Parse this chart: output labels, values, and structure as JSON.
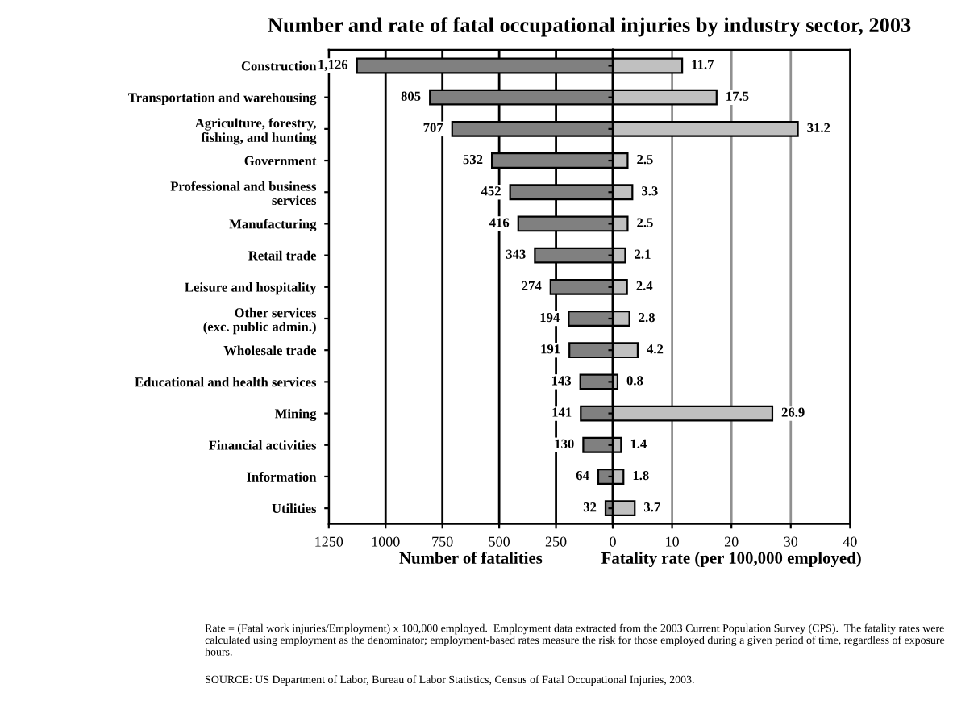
{
  "chart_data": [
    {
      "type": "bar",
      "orientation": "horizontal",
      "title": "Number and rate of fatal occupational injuries by industry sector, 2003",
      "xlabel": "Number of fatalities",
      "categories": [
        "Construction",
        "Transportation and warehousing",
        "Agriculture, forestry,\nfishing, and hunting",
        "Government",
        "Professional and business\nservices",
        "Manufacturing",
        "Retail trade",
        "Leisure and hospitality",
        "Other services\n(exc. public admin.)",
        "Wholesale trade",
        "Educational and health services",
        "Mining",
        "Financial activities",
        "Information",
        "Utilities"
      ],
      "series": [
        {
          "color": "#808080",
          "values": [
            1126,
            805,
            707,
            532,
            452,
            416,
            343,
            274,
            194,
            191,
            143,
            141,
            130,
            64,
            32
          ],
          "value_labels": [
            "1,126",
            "805",
            "707",
            "532",
            "452",
            "416",
            "343",
            "274",
            "194",
            "191",
            "143",
            "141",
            "130",
            "64",
            "32"
          ]
        }
      ],
      "xlim": [
        1250,
        0
      ],
      "xticks": [
        1250,
        1000,
        750,
        500,
        250,
        {
          "value": 0,
          "label": null
        }
      ],
      "grid": "x",
      "annotations": [
        "Rate = (Fatal work injuries/Employment) x 100,000 employed.  Employment data extracted from the 2003 Current Population Survey (CPS).  The fatality rates were calculated using employment as the denominator; employment-based rates measure the risk for those employed during a given period of time, regardless of exposure hours.",
        "SOURCE: US Department of Labor, Bureau of Labor Statistics, Census of Fatal Occupational Injuries, 2003."
      ]
    },
    {
      "type": "bar",
      "orientation": "horizontal",
      "xlabel": "Fatality rate (per 100,000 employed)",
      "series": [
        {
          "color": "#c0c0c0",
          "values": [
            11.7,
            17.5,
            31.2,
            2.5,
            3.3,
            2.5,
            2.1,
            2.4,
            2.8,
            4.2,
            0.8,
            26.9,
            1.4,
            1.8,
            3.7
          ]
        }
      ],
      "data_labels": true,
      "xlim": [
        0,
        40
      ],
      "xticks": [
        0,
        10,
        20,
        30,
        40
      ],
      "grid": "x",
      "tick_labels": "x"
    }
  ]
}
